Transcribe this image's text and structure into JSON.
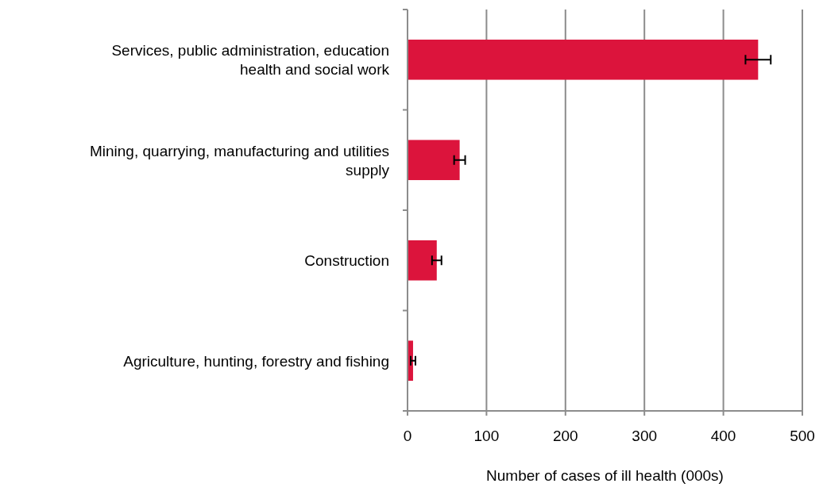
{
  "chart_data": {
    "type": "bar",
    "orientation": "horizontal",
    "xlabel": "Number of cases of ill health (000s)",
    "categories": [
      "Services, public administration, education health and social work",
      "Mining, quarrying, manufacturing and utilities supply",
      "Construction",
      "Agriculture, hunting, forestry and fishing"
    ],
    "values": [
      444,
      66,
      37,
      7
    ],
    "errors": [
      16,
      7,
      6,
      3
    ],
    "color": "#dc143c",
    "xlim": [
      0,
      500
    ],
    "xticks": [
      0,
      100,
      200,
      300,
      400,
      500
    ],
    "grid": "x"
  }
}
